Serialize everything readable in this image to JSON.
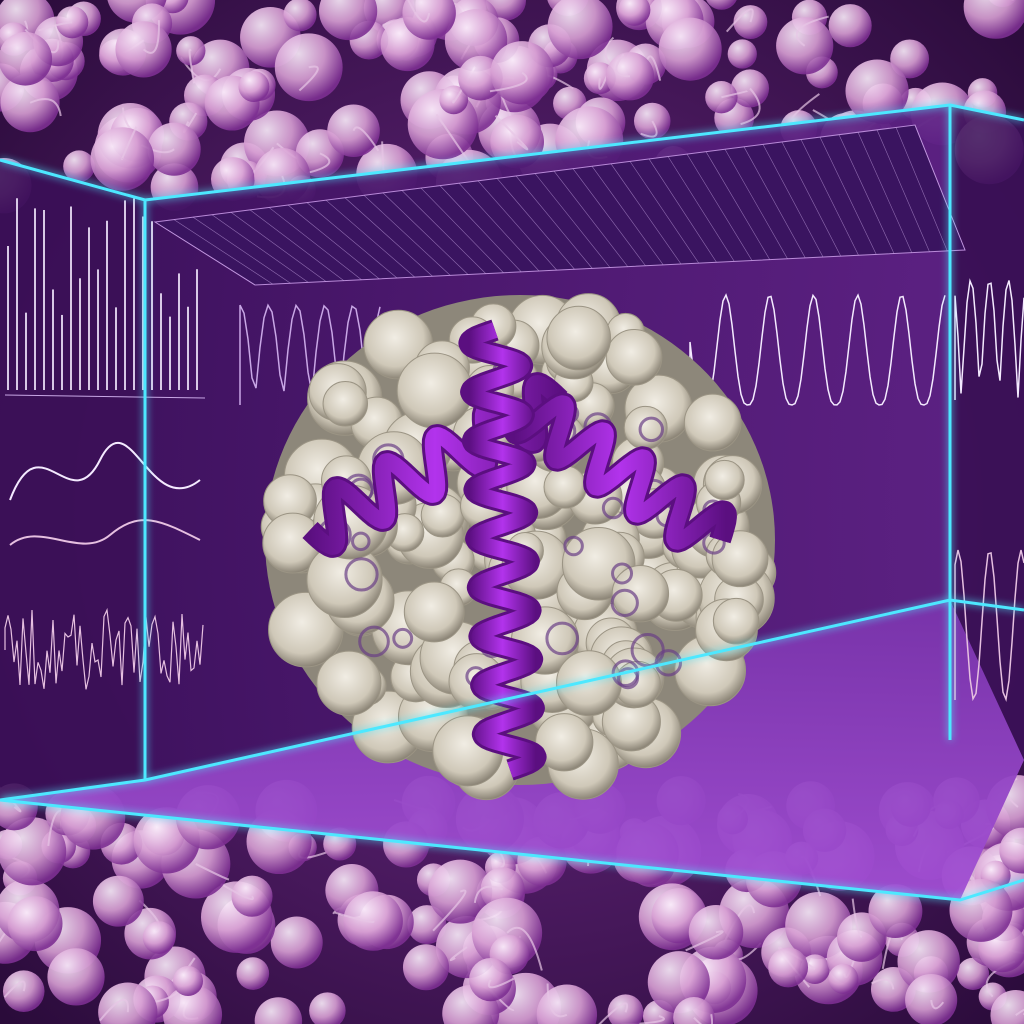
{
  "scene": {
    "subject": "protein-structure-illustration",
    "colors": {
      "background": "#2a0b3a",
      "molecule_bg": "#6f2f86",
      "bead": "#e6c0e0",
      "bead_shadow": "#8a3f9e",
      "box_edge": "#4de8ff",
      "box_inner": "#5a1f80",
      "helix": "#9d1fd1",
      "helix_dark": "#5b0f80",
      "protein_surface": "#d8d3c7",
      "protein_shadow": "#8d877a",
      "floor": "#8a3fb8",
      "plot_line": "#f4eaff"
    }
  },
  "chart_data": []
}
